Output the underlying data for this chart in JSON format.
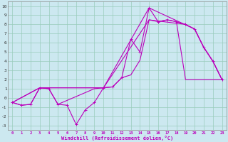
{
  "xlabel": "Windchill (Refroidissement éolien,°C)",
  "bg_color": "#cce8f0",
  "grid_color": "#99ccbb",
  "line_color": "#bb00bb",
  "xlim": [
    -0.5,
    23.5
  ],
  "ylim": [
    -3.5,
    10.5
  ],
  "xticks": [
    0,
    1,
    2,
    3,
    4,
    5,
    6,
    7,
    8,
    9,
    10,
    11,
    12,
    13,
    14,
    15,
    16,
    17,
    18,
    19,
    20,
    21,
    22,
    23
  ],
  "yticks": [
    -3,
    -2,
    -1,
    0,
    1,
    2,
    3,
    4,
    5,
    6,
    7,
    8,
    9,
    10
  ],
  "line1_x": [
    0,
    1,
    2,
    3,
    4,
    5,
    6,
    7,
    8,
    9,
    10,
    11,
    12,
    13,
    14,
    15,
    16,
    17,
    18,
    19,
    20,
    21,
    22,
    23
  ],
  "line1_y": [
    -0.5,
    -0.8,
    -0.7,
    1.1,
    1.0,
    -0.7,
    -0.8,
    -2.9,
    -1.3,
    -0.5,
    1.1,
    1.2,
    2.2,
    6.4,
    5.0,
    9.8,
    8.3,
    8.5,
    8.3,
    8.0,
    7.5,
    5.5,
    4.0,
    2.0
  ],
  "line2_x": [
    0,
    1,
    2,
    3,
    4,
    5,
    9,
    10,
    11,
    12,
    13,
    14,
    15,
    16,
    17,
    18,
    19,
    20,
    21,
    22,
    23
  ],
  "line2_y": [
    -0.5,
    -0.8,
    -0.7,
    1.1,
    1.0,
    -0.7,
    1.0,
    1.1,
    1.2,
    2.2,
    2.5,
    4.1,
    8.5,
    8.3,
    8.5,
    8.3,
    2.0,
    2.0,
    2.0,
    2.0,
    2.0
  ],
  "line3_x": [
    0,
    3,
    10,
    15,
    20,
    21,
    22,
    23
  ],
  "line3_y": [
    -0.5,
    1.1,
    1.1,
    9.8,
    7.5,
    5.5,
    4.0,
    2.0
  ],
  "line4_x": [
    0,
    3,
    10,
    15,
    19,
    20,
    21,
    22,
    23
  ],
  "line4_y": [
    -0.5,
    1.1,
    1.1,
    8.5,
    8.0,
    7.5,
    5.5,
    4.0,
    2.0
  ]
}
